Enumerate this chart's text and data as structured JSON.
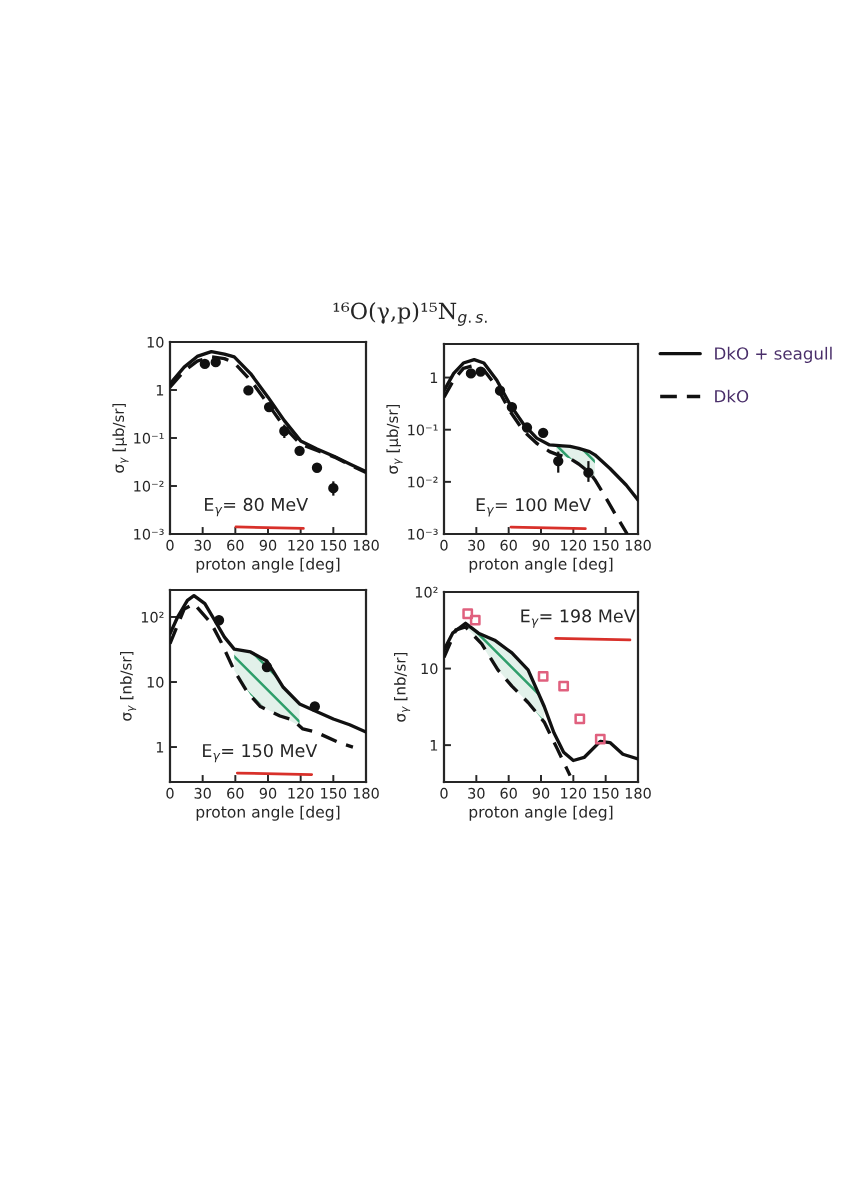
{
  "chart_data": [
    {
      "type": "line",
      "title": "¹⁶O(γ,p)¹⁵N$_{g.s.}$",
      "xlabel": "proton angle [deg]",
      "ylabel": "σ$_{γ}$ [μb/sr]",
      "annotations": [
        "E$_{γ}$= 80 MeV"
      ],
      "log": "y",
      "xlim": [
        0,
        180
      ],
      "xticks": [
        0,
        30,
        60,
        90,
        120,
        150,
        180
      ],
      "ylim": [
        0.001,
        10
      ],
      "yticks": [
        {
          "value": 0.001,
          "label": "10⁻³"
        },
        {
          "value": 0.01,
          "label": "10⁻²"
        },
        {
          "value": 0.1,
          "label": "10⁻¹"
        },
        1,
        10
      ],
      "series": [
        {
          "color": "#111111",
          "line_style": "solid",
          "x": [
            0,
            13,
            25,
            38,
            50,
            59,
            74,
            90,
            105,
            120,
            135,
            151,
            166,
            180
          ],
          "values": [
            1.35,
            3.0,
            5.0,
            6.3,
            5.6,
            4.9,
            2.2,
            0.71,
            0.23,
            0.087,
            0.059,
            0.041,
            0.028,
            0.02
          ]
        },
        {
          "color": "#111111",
          "line_style": "dashed",
          "x": [
            0,
            13,
            25,
            38,
            50,
            59,
            74,
            90,
            105,
            120,
            135,
            151,
            166,
            180
          ],
          "values": [
            1.15,
            2.5,
            4.0,
            4.9,
            4.5,
            3.7,
            1.6,
            0.51,
            0.17,
            0.074,
            0.055,
            0.04,
            0.027,
            0.019
          ]
        },
        {
          "type": "scatter",
          "color": "#111111",
          "marker": "circle",
          "x": [
            32,
            42,
            72,
            91,
            105,
            119,
            135,
            150
          ],
          "values": [
            3.5,
            3.8,
            0.98,
            0.44,
            0.14,
            0.054,
            0.024,
            0.009
          ],
          "errors": [
            [
              2.9,
              4.2
            ],
            [
              3.2,
              4.6
            ],
            [
              0.8,
              1.2
            ],
            [
              0.36,
              0.54
            ],
            [
              0.1,
              0.19
            ],
            [
              0.045,
              0.065
            ],
            [
              0.02,
              0.029
            ],
            [
              0.0063,
              0.0125
            ]
          ]
        }
      ]
    },
    {
      "type": "line",
      "xlabel": "proton angle [deg]",
      "ylabel": "σ$_{γ}$ [μb/sr]",
      "annotations": [
        "E$_{γ}$= 100 MeV"
      ],
      "log": "y",
      "legend": "right",
      "xlim": [
        0,
        180
      ],
      "xticks": [
        0,
        30,
        60,
        90,
        120,
        150,
        180
      ],
      "ylim": [
        0.001,
        4.4
      ],
      "yticks": [
        {
          "value": 0.001,
          "label": "10⁻³"
        },
        {
          "value": 0.01,
          "label": "10⁻²"
        },
        {
          "value": 0.1,
          "label": "10⁻¹"
        },
        1
      ],
      "series": [
        {
          "name": "DkO + seagull",
          "color": "#111111",
          "line_style": "solid",
          "x": [
            0,
            9,
            18,
            28,
            37,
            49,
            61,
            74,
            86,
            98,
            104,
            110,
            117,
            125,
            135,
            140,
            154,
            169,
            180
          ],
          "values": [
            0.56,
            1.2,
            1.9,
            2.2,
            1.9,
            0.89,
            0.31,
            0.126,
            0.069,
            0.051,
            0.05,
            0.049,
            0.048,
            0.044,
            0.038,
            0.033,
            0.018,
            0.0087,
            0.0045
          ],
          "lower": [
            null,
            null,
            null,
            null,
            null,
            null,
            null,
            null,
            null,
            null,
            0.034,
            0.031,
            0.028,
            0.022,
            0.015,
            0.011,
            null,
            null,
            null
          ],
          "upper": [
            null,
            null,
            null,
            null,
            null,
            null,
            null,
            null,
            null,
            null,
            0.05,
            0.049,
            0.048,
            0.044,
            0.038,
            0.033,
            null,
            null,
            null
          ]
        },
        {
          "name": "DkO",
          "color": "#111111",
          "line_style": "dashed",
          "x": [
            0,
            9,
            18,
            28,
            37,
            49,
            61,
            74,
            86,
            98,
            104,
            110,
            117,
            125,
            135,
            140,
            147,
            160,
            170
          ],
          "values": [
            0.42,
            0.9,
            1.5,
            1.7,
            1.4,
            0.66,
            0.23,
            0.093,
            0.055,
            0.038,
            0.034,
            0.031,
            0.028,
            0.022,
            0.015,
            0.011,
            0.0064,
            0.0022,
            0.001
          ]
        },
        {
          "type": "scatter",
          "color": "#111111",
          "marker": "circle",
          "x": [
            25,
            34,
            52,
            63,
            77,
            92,
            106,
            134
          ],
          "values": [
            1.2,
            1.3,
            0.56,
            0.27,
            0.11,
            0.087,
            0.025,
            0.015
          ],
          "errors": [
            [
              1.0,
              1.45
            ],
            [
              1.1,
              1.55
            ],
            [
              0.46,
              0.68
            ],
            [
              0.22,
              0.33
            ],
            [
              0.09,
              0.13
            ],
            [
              0.072,
              0.105
            ],
            [
              0.015,
              0.038
            ],
            [
              0.01,
              0.025
            ]
          ]
        }
      ]
    },
    {
      "type": "line",
      "xlabel": "proton angle [deg]",
      "ylabel": "σ$_{γ}$ [nb/sr]",
      "annotations": [
        "E$_{γ}$= 150 MeV"
      ],
      "log": "y",
      "xlim": [
        0,
        180
      ],
      "xticks": [
        0,
        30,
        60,
        90,
        120,
        150,
        180
      ],
      "ylim": [
        0.29,
        260
      ],
      "yticks": [
        1,
        10,
        {
          "value": 100,
          "label": "10²"
        }
      ],
      "series": [
        {
          "color": "#111111",
          "line_style": "solid",
          "x": [
            0,
            7,
            16,
            22,
            32,
            41,
            50,
            59,
            74,
            89,
            104,
            119,
            135,
            150,
            165,
            180
          ],
          "values": [
            55,
            100,
            180,
            213,
            160,
            89,
            49,
            32,
            29,
            21,
            8.3,
            4.6,
            3.5,
            2.7,
            2.2,
            1.7
          ],
          "lower": [
            null,
            null,
            null,
            null,
            null,
            null,
            null,
            15,
            6.3,
            3.8,
            2.9,
            2.1,
            null,
            null,
            null,
            null
          ],
          "upper": [
            null,
            null,
            null,
            null,
            null,
            null,
            null,
            32,
            29,
            21,
            8.3,
            4.6,
            null,
            null,
            null,
            null
          ]
        },
        {
          "color": "#111111",
          "line_style": "dashed",
          "x": [
            0,
            13,
            22,
            38,
            47,
            59,
            71,
            83,
            101,
            113,
            122,
            134,
            156,
            168
          ],
          "values": [
            39,
            132,
            160,
            79,
            41,
            15,
            7,
            4.2,
            3.0,
            2.6,
            1.9,
            1.7,
            1.15,
            1.0
          ]
        },
        {
          "type": "scatter",
          "color": "#111111",
          "marker": "circle",
          "x": [
            45,
            89,
            133
          ],
          "values": [
            89,
            17,
            4.2
          ],
          "errors": [
            [
              75,
              105
            ],
            [
              14.5,
              20
            ],
            [
              3.6,
              4.9
            ]
          ]
        }
      ]
    },
    {
      "type": "line",
      "xlabel": "proton angle [deg]",
      "ylabel": "σ$_{γ}$ [nb/sr]",
      "annotations": [
        "E$_{γ}$= 198 MeV"
      ],
      "log": "y",
      "xlim": [
        0,
        180
      ],
      "xticks": [
        0,
        30,
        60,
        90,
        120,
        150,
        180
      ],
      "ylim": [
        0.33,
        100
      ],
      "yticks": [
        1,
        10,
        {
          "value": 100,
          "label": "10²"
        }
      ],
      "series": [
        {
          "color": "#111111",
          "line_style": "solid",
          "x": [
            0,
            8,
            20,
            32,
            47,
            63,
            78,
            93,
            102,
            111,
            120,
            130,
            145,
            154,
            166,
            180
          ],
          "values": [
            17.5,
            29,
            39,
            29,
            23.5,
            16,
            9.6,
            3.2,
            1.45,
            0.81,
            0.63,
            0.69,
            1.12,
            1.08,
            0.76,
            0.66
          ],
          "lower": [
            null,
            null,
            35,
            24,
            11,
            5.9,
            3.6,
            2.0,
            null,
            null,
            null,
            null,
            null,
            null,
            null,
            null
          ],
          "upper": [
            null,
            null,
            39,
            29,
            23.5,
            16,
            9.6,
            3.2,
            null,
            null,
            null,
            null,
            null,
            null,
            null,
            null
          ]
        },
        {
          "color": "#111111",
          "line_style": "dashed",
          "x": [
            0,
            11,
            20,
            35,
            50,
            63,
            78,
            93,
            105,
            114,
            117
          ],
          "values": [
            14,
            32,
            35,
            21,
            9.6,
            5.9,
            3.6,
            2.0,
            0.9,
            0.49,
            0.4
          ]
        },
        {
          "type": "scatter",
          "color": "#e0607e",
          "marker": "square",
          "x": [
            22,
            29,
            92,
            111,
            126,
            145
          ],
          "values": [
            52,
            43,
            7.9,
            5.9,
            2.2,
            1.2
          ]
        }
      ]
    }
  ]
}
